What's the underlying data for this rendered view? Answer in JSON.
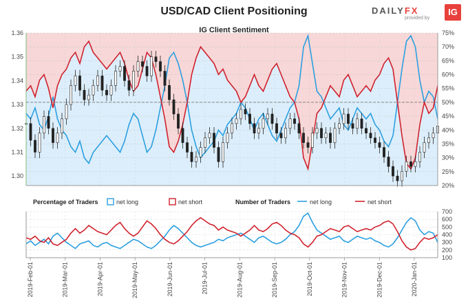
{
  "header": {
    "title": "USD/CAD Client Positioning",
    "logo_prefix": "DAILY",
    "logo_fx": "FX",
    "logo_sub": "provided by",
    "logo_badge": "IG"
  },
  "colors": {
    "long": "#2a9fe0",
    "short": "#d0202c",
    "long_fill": "#dceefb",
    "short_fill": "#f7d7d7",
    "candle": "#222222"
  },
  "chart_data": [
    {
      "type": "candlestick+area",
      "title": "IG Client Sentiment",
      "price_axis": {
        "ticks": [
          "1.30",
          "1.31",
          "1.32",
          "1.33",
          "1.34",
          "1.35",
          "1.36"
        ],
        "range": [
          1.296,
          1.36
        ]
      },
      "percent_axis": {
        "ticks": [
          "20%",
          "25%",
          "30%",
          "35%",
          "40%",
          "45%",
          "50%",
          "55%",
          "60%",
          "65%",
          "70%",
          "75%"
        ],
        "range": [
          20,
          75
        ]
      },
      "x_ticks": [
        "2019-Feb-01",
        "2019-Mar-01",
        "2019-Apr-01",
        "2019-May-01",
        "2019-Jun-01",
        "2019-Jul-01",
        "2019-Aug-01",
        "2019-Sep-01",
        "2019-Oct-01",
        "2019-Nov-01",
        "2019-Dec-01",
        "2020-Jan-01"
      ],
      "series": [
        {
          "name": "net long",
          "values": [
            46,
            44,
            48,
            42,
            40,
            45,
            52,
            44,
            40,
            38,
            34,
            32,
            36,
            30,
            28,
            32,
            34,
            36,
            38,
            36,
            34,
            32,
            36,
            42,
            46,
            44,
            38,
            32,
            34,
            40,
            48,
            56,
            66,
            68,
            64,
            58,
            50,
            40,
            34,
            30,
            32,
            34,
            36,
            40,
            38,
            42,
            44,
            46,
            50,
            48,
            44,
            40,
            44,
            46,
            42,
            38,
            36,
            40,
            44,
            48,
            50,
            56,
            70,
            74,
            64,
            54,
            52,
            48,
            44,
            46,
            48,
            42,
            40,
            44,
            48,
            46,
            44,
            46,
            42,
            40,
            36,
            34,
            38,
            50,
            62,
            72,
            74,
            70,
            58,
            50,
            54,
            52,
            44
          ]
        },
        {
          "name": "net short",
          "values": [
            54,
            56,
            52,
            58,
            60,
            55,
            48,
            56,
            60,
            62,
            66,
            68,
            64,
            70,
            72,
            68,
            66,
            64,
            62,
            64,
            66,
            68,
            64,
            58,
            54,
            56,
            62,
            68,
            66,
            60,
            52,
            44,
            34,
            32,
            36,
            42,
            50,
            60,
            66,
            70,
            68,
            66,
            64,
            60,
            62,
            58,
            56,
            54,
            50,
            52,
            56,
            60,
            56,
            54,
            58,
            62,
            64,
            60,
            56,
            52,
            50,
            44,
            30,
            26,
            36,
            46,
            48,
            52,
            56,
            54,
            52,
            58,
            60,
            56,
            52,
            54,
            56,
            54,
            58,
            60,
            64,
            66,
            62,
            50,
            38,
            28,
            26,
            30,
            42,
            50,
            46,
            48,
            56
          ]
        }
      ],
      "price": [
        1.322,
        1.315,
        1.31,
        1.318,
        1.325,
        1.32,
        1.314,
        1.318,
        1.324,
        1.33,
        1.338,
        1.342,
        1.336,
        1.332,
        1.334,
        1.338,
        1.342,
        1.336,
        1.334,
        1.338,
        1.344,
        1.346,
        1.34,
        1.336,
        1.344,
        1.348,
        1.346,
        1.342,
        1.35,
        1.348,
        1.344,
        1.338,
        1.332,
        1.326,
        1.32,
        1.314,
        1.31,
        1.306,
        1.308,
        1.312,
        1.316,
        1.318,
        1.312,
        1.306,
        1.314,
        1.318,
        1.322,
        1.324,
        1.328,
        1.326,
        1.322,
        1.318,
        1.32,
        1.324,
        1.326,
        1.322,
        1.318,
        1.316,
        1.32,
        1.324,
        1.322,
        1.318,
        1.314,
        1.312,
        1.318,
        1.32,
        1.316,
        1.318,
        1.314,
        1.32,
        1.322,
        1.326,
        1.322,
        1.32,
        1.324,
        1.32,
        1.318,
        1.316,
        1.314,
        1.312,
        1.308,
        1.304,
        1.3,
        1.298,
        1.302,
        1.306,
        1.304,
        1.306,
        1.31,
        1.314,
        1.316,
        1.318,
        1.321
      ]
    },
    {
      "type": "line",
      "legend": {
        "pct_label": "Percentage of Traders",
        "pct_long": "net long",
        "pct_short": "net short",
        "num_label": "Number of Traders",
        "num_long": "net long",
        "num_short": "net short"
      },
      "y_axis": {
        "ticks": [
          "100",
          "200",
          "300",
          "400",
          "500",
          "600",
          "700"
        ],
        "range": [
          100,
          700
        ]
      },
      "series": [
        {
          "name": "net long",
          "values": [
            280,
            320,
            260,
            300,
            340,
            280,
            380,
            420,
            360,
            300,
            260,
            220,
            280,
            300,
            320,
            260,
            240,
            280,
            300,
            260,
            240,
            220,
            260,
            300,
            340,
            320,
            280,
            240,
            220,
            260,
            320,
            380,
            460,
            520,
            480,
            420,
            360,
            300,
            260,
            240,
            260,
            280,
            300,
            340,
            320,
            360,
            380,
            400,
            420,
            380,
            340,
            300,
            360,
            380,
            340,
            300,
            280,
            300,
            340,
            400,
            440,
            520,
            640,
            680,
            560,
            460,
            420,
            380,
            340,
            360,
            380,
            320,
            300,
            340,
            380,
            360,
            340,
            360,
            320,
            300,
            260,
            240,
            280,
            360,
            460,
            560,
            620,
            580,
            460,
            400,
            440,
            420,
            300
          ]
        },
        {
          "name": "net short",
          "values": [
            360,
            340,
            380,
            320,
            300,
            360,
            280,
            260,
            300,
            340,
            420,
            480,
            420,
            460,
            520,
            480,
            440,
            420,
            400,
            460,
            520,
            560,
            480,
            420,
            380,
            420,
            500,
            580,
            540,
            480,
            400,
            340,
            300,
            280,
            320,
            380,
            440,
            520,
            580,
            620,
            580,
            540,
            520,
            460,
            500,
            460,
            440,
            420,
            380,
            420,
            460,
            520,
            460,
            440,
            480,
            540,
            560,
            520,
            460,
            420,
            400,
            360,
            280,
            240,
            300,
            380,
            400,
            440,
            480,
            460,
            440,
            500,
            520,
            480,
            440,
            460,
            480,
            460,
            500,
            520,
            560,
            580,
            540,
            440,
            320,
            240,
            200,
            220,
            300,
            360,
            340,
            360,
            400
          ]
        }
      ]
    }
  ]
}
